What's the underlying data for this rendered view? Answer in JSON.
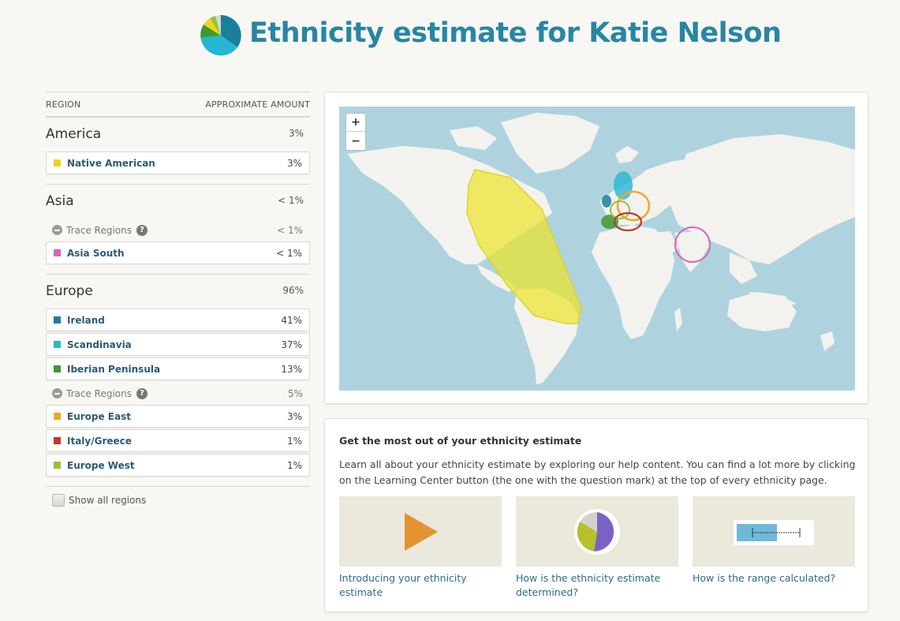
{
  "header": {
    "title": "Ethnicity estimate for Katie Nelson",
    "logo_icon": "ethnicity-pie-icon"
  },
  "table": {
    "col_region": "REGION",
    "col_amount": "APPROXIMATE AMOUNT",
    "regions": [
      {
        "name": "America",
        "pct": "3%",
        "items": [
          {
            "name": "Native American",
            "pct": "3%",
            "color": "#f2d31b"
          }
        ]
      },
      {
        "name": "Asia",
        "pct": "< 1%",
        "trace": {
          "label": "Trace Regions",
          "pct": "< 1%"
        },
        "trace_items": [
          {
            "name": "Asia South",
            "pct": "< 1%",
            "color": "#d865b4"
          }
        ]
      },
      {
        "name": "Europe",
        "pct": "96%",
        "items": [
          {
            "name": "Ireland",
            "pct": "41%",
            "color": "#1a7f9a"
          },
          {
            "name": "Scandinavia",
            "pct": "37%",
            "color": "#25b6d4"
          },
          {
            "name": "Iberian Peninsula",
            "pct": "13%",
            "color": "#3d9a2e"
          }
        ],
        "trace": {
          "label": "Trace Regions",
          "pct": "5%"
        },
        "trace_items": [
          {
            "name": "Europe East",
            "pct": "3%",
            "color": "#f5a623"
          },
          {
            "name": "Italy/Greece",
            "pct": "1%",
            "color": "#c0392b"
          },
          {
            "name": "Europe West",
            "pct": "1%",
            "color": "#8dc63f"
          }
        ]
      }
    ],
    "show_all": "Show all regions"
  },
  "map": {
    "zoom_in": "+",
    "zoom_out": "−"
  },
  "info": {
    "title": "Get the most out of your ethnicity estimate",
    "body": "Learn all about your ethnicity estimate by exploring our help content. You can find a lot more by clicking on the Learning Center button (the one with the question mark) at the top of every ethnicity page.",
    "tiles": [
      {
        "caption": "Introducing your ethnicity estimate",
        "icon": "play-icon"
      },
      {
        "caption": "How is the ethnicity estimate determined?",
        "icon": "pie-chart-icon"
      },
      {
        "caption": "How is the range calculated?",
        "icon": "range-bar-icon"
      }
    ]
  }
}
